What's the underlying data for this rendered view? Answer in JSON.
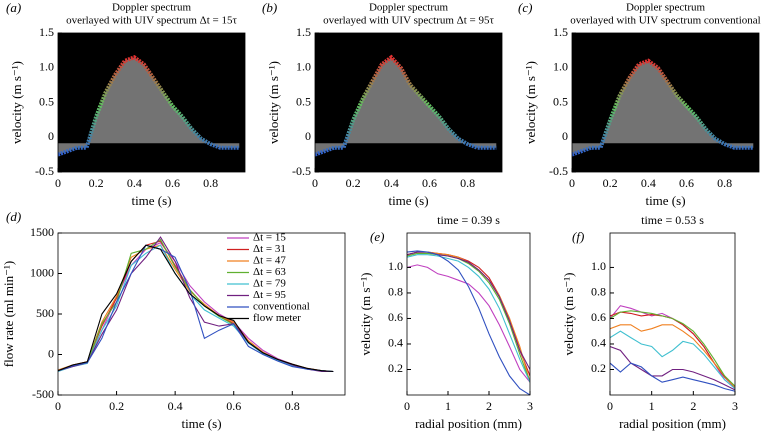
{
  "chart_data": [
    {
      "type": "spectrogram",
      "panel": "(a)",
      "title": "Doppler spectrum",
      "subtitle": "overlayed with UIV spectrum Δt = 15τ",
      "xlabel": "time (s)",
      "ylabel": "velocity (m s⁻¹)",
      "x": [
        0,
        0.05,
        0.1,
        0.15,
        0.2,
        0.25,
        0.3,
        0.35,
        0.4,
        0.45,
        0.5,
        0.55,
        0.6,
        0.65,
        0.7,
        0.75,
        0.8,
        0.85,
        0.9,
        0.95
      ],
      "values": [
        -0.25,
        -0.2,
        -0.15,
        -0.15,
        0.3,
        0.65,
        0.9,
        1.1,
        1.15,
        1.05,
        0.85,
        0.65,
        0.45,
        0.3,
        0.12,
        -0.02,
        -0.1,
        -0.15,
        -0.15,
        -0.15
      ],
      "xlim": [
        0,
        0.98
      ],
      "ylim": [
        -0.5,
        1.5
      ],
      "xticks": [
        0,
        0.2,
        0.4,
        0.6,
        0.8
      ],
      "yticks": [
        -0.5,
        0,
        0.5,
        {
          "value": 1,
          "label": "1.0"
        },
        1.5
      ]
    },
    {
      "type": "spectrogram",
      "panel": "(b)",
      "title": "Doppler spectrum",
      "subtitle": "overlayed with UIV spectrum Δt = 95τ",
      "xlabel": "time (s)",
      "ylabel": "velocity (m s⁻¹)",
      "x": [
        0,
        0.05,
        0.1,
        0.15,
        0.2,
        0.25,
        0.3,
        0.35,
        0.4,
        0.45,
        0.5,
        0.55,
        0.6,
        0.65,
        0.7,
        0.75,
        0.8,
        0.85,
        0.9,
        0.95
      ],
      "values": [
        -0.25,
        -0.2,
        -0.15,
        -0.15,
        0.25,
        0.55,
        0.8,
        1.05,
        1.15,
        1.0,
        0.75,
        0.6,
        0.45,
        0.3,
        0.12,
        -0.02,
        -0.1,
        -0.15,
        -0.15,
        -0.15
      ],
      "xlim": [
        0,
        0.98
      ],
      "ylim": [
        -0.5,
        1.5
      ],
      "xticks": [
        0,
        0.2,
        0.4,
        0.6,
        0.8
      ],
      "yticks": [
        -0.5,
        0,
        0.5,
        {
          "value": 1,
          "label": "1.0"
        },
        1.5
      ]
    },
    {
      "type": "spectrogram",
      "panel": "(c)",
      "title": "Doppler spectrum",
      "subtitle": "overlayed with UIV spectrum conventional",
      "xlabel": "time (s)",
      "ylabel": "velocity (m s⁻¹)",
      "x": [
        0,
        0.05,
        0.1,
        0.15,
        0.2,
        0.25,
        0.3,
        0.35,
        0.4,
        0.45,
        0.5,
        0.55,
        0.6,
        0.65,
        0.7,
        0.75,
        0.8,
        0.85,
        0.9,
        0.95
      ],
      "values": [
        -0.25,
        -0.2,
        -0.15,
        -0.15,
        0.25,
        0.6,
        0.85,
        1.05,
        1.1,
        1.0,
        0.8,
        0.6,
        0.45,
        0.3,
        0.12,
        -0.02,
        -0.1,
        -0.15,
        -0.15,
        -0.15
      ],
      "xlim": [
        0,
        0.98
      ],
      "ylim": [
        -0.5,
        1.5
      ],
      "xticks": [
        0,
        0.2,
        0.4,
        0.6,
        0.8
      ],
      "yticks": [
        -0.5,
        0,
        0.5,
        {
          "value": 1,
          "label": "1.0"
        },
        1.5
      ]
    },
    {
      "type": "line",
      "panel": "(d)",
      "xlabel": "time (s)",
      "ylabel": "flow rate (ml min⁻¹)",
      "legend": "upper right",
      "x": [
        0,
        0.05,
        0.1,
        0.15,
        0.2,
        0.25,
        0.3,
        0.35,
        0.4,
        0.45,
        0.5,
        0.55,
        0.6,
        0.65,
        0.7,
        0.75,
        0.8,
        0.85,
        0.9,
        0.94
      ],
      "xlim": [
        0,
        0.98
      ],
      "ylim": [
        -500,
        1500
      ],
      "xticks": [
        0,
        0.2,
        0.4,
        0.6,
        0.8
      ],
      "yticks": [
        -500,
        0,
        500,
        1000,
        1500
      ],
      "series": [
        {
          "name": "Δt = 15",
          "color": "#c040c0",
          "values": [
            -200,
            -140,
            -100,
            300,
            700,
            1100,
            1300,
            1380,
            1150,
            850,
            650,
            500,
            400,
            200,
            50,
            -50,
            -120,
            -180,
            -200,
            -210
          ]
        },
        {
          "name": "Δt = 31",
          "color": "#d02020",
          "values": [
            -200,
            -130,
            -90,
            350,
            700,
            1150,
            1350,
            1400,
            1100,
            800,
            600,
            480,
            380,
            150,
            20,
            -60,
            -130,
            -170,
            -200,
            -210
          ]
        },
        {
          "name": "Δt = 47",
          "color": "#f08020",
          "values": [
            -190,
            -130,
            -90,
            400,
            720,
            1200,
            1300,
            1350,
            1050,
            780,
            620,
            480,
            400,
            170,
            30,
            -60,
            -120,
            -170,
            -200,
            -210
          ]
        },
        {
          "name": "Δt = 63",
          "color": "#60b030",
          "values": [
            -200,
            -140,
            -100,
            380,
            650,
            1250,
            1300,
            1420,
            1080,
            800,
            600,
            470,
            370,
            150,
            20,
            -60,
            -130,
            -180,
            -200,
            -210
          ]
        },
        {
          "name": "Δt = 79",
          "color": "#40c0d0",
          "values": [
            -210,
            -150,
            -110,
            300,
            600,
            1100,
            1250,
            1350,
            1000,
            750,
            550,
            450,
            350,
            140,
            10,
            -70,
            -140,
            -180,
            -200,
            -210
          ]
        },
        {
          "name": "Δt = 95",
          "color": "#702080",
          "values": [
            -200,
            -150,
            -100,
            250,
            550,
            1000,
            1200,
            1450,
            1150,
            700,
            400,
            350,
            380,
            150,
            20,
            -60,
            -130,
            -180,
            -210,
            -210
          ]
        },
        {
          "name": "conventional",
          "color": "#3050c0",
          "values": [
            -200,
            -140,
            -100,
            200,
            650,
            1000,
            1350,
            1300,
            1200,
            800,
            200,
            300,
            380,
            100,
            0,
            -80,
            -150,
            -180,
            -200,
            -210
          ]
        },
        {
          "name": "flow meter",
          "color": "#000000",
          "values": [
            -200,
            -130,
            -90,
            500,
            750,
            1150,
            1350,
            1300,
            1000,
            750,
            600,
            480,
            420,
            150,
            20,
            -60,
            -120,
            -170,
            -200,
            -210
          ]
        }
      ]
    },
    {
      "type": "line",
      "panel": "(e)",
      "title": "time = 0.39 s",
      "xlabel": "radial position (mm)",
      "ylabel": "velocity (m s⁻¹)",
      "x": [
        0,
        0.25,
        0.5,
        0.75,
        1,
        1.25,
        1.5,
        1.75,
        2,
        2.25,
        2.5,
        2.75,
        3
      ],
      "xlim": [
        0,
        3
      ],
      "ylim": [
        0,
        1.27
      ],
      "xticks": [
        0,
        1,
        2,
        3
      ],
      "yticks": [
        0.2,
        0.4,
        0.6,
        0.8,
        {
          "value": 1,
          "label": "1.0"
        }
      ],
      "series": [
        {
          "color": "#c040c0",
          "values": [
            1.0,
            1.02,
            1.0,
            0.95,
            0.93,
            0.9,
            0.87,
            0.8,
            0.7,
            0.55,
            0.38,
            0.2,
            0.1
          ]
        },
        {
          "color": "#d02020",
          "values": [
            1.1,
            1.12,
            1.12,
            1.11,
            1.1,
            1.08,
            1.05,
            1.0,
            0.92,
            0.78,
            0.6,
            0.35,
            0.15
          ]
        },
        {
          "color": "#f08020",
          "values": [
            1.1,
            1.12,
            1.12,
            1.11,
            1.1,
            1.08,
            1.04,
            0.98,
            0.9,
            0.78,
            0.6,
            0.38,
            0.1
          ]
        },
        {
          "color": "#60b030",
          "values": [
            1.09,
            1.11,
            1.11,
            1.1,
            1.09,
            1.07,
            1.03,
            0.97,
            0.88,
            0.75,
            0.56,
            0.32,
            0.1
          ]
        },
        {
          "color": "#40c0d0",
          "values": [
            1.08,
            1.1,
            1.1,
            1.09,
            1.07,
            1.05,
            1.0,
            0.93,
            0.83,
            0.68,
            0.48,
            0.28,
            0.1
          ]
        },
        {
          "color": "#702080",
          "values": [
            1.1,
            1.12,
            1.12,
            1.1,
            1.09,
            1.07,
            1.04,
            0.98,
            0.9,
            0.77,
            0.58,
            0.35,
            0.2
          ]
        },
        {
          "color": "#3050c0",
          "values": [
            1.12,
            1.13,
            1.12,
            1.1,
            1.05,
            0.98,
            0.85,
            0.68,
            0.48,
            0.3,
            0.15,
            0.05,
            0
          ]
        }
      ]
    },
    {
      "type": "line",
      "panel": "(f)",
      "title": "time = 0.53 s",
      "xlabel": "radial position (mm)",
      "ylabel": "velocity (m s⁻¹)",
      "x": [
        0,
        0.25,
        0.5,
        0.75,
        1,
        1.25,
        1.5,
        1.75,
        2,
        2.25,
        2.5,
        2.75,
        3
      ],
      "xlim": [
        0,
        3
      ],
      "ylim": [
        0,
        1.27
      ],
      "xticks": [
        0,
        1,
        2,
        3
      ],
      "yticks": [
        0.2,
        0.4,
        0.6,
        0.8,
        {
          "value": 1,
          "label": "1.0"
        }
      ],
      "series": [
        {
          "color": "#c040c0",
          "values": [
            0.6,
            0.7,
            0.68,
            0.65,
            0.62,
            0.64,
            0.6,
            0.55,
            0.48,
            0.38,
            0.25,
            0.12,
            0.05
          ]
        },
        {
          "color": "#d02020",
          "values": [
            0.62,
            0.65,
            0.64,
            0.62,
            0.63,
            0.62,
            0.6,
            0.55,
            0.48,
            0.38,
            0.25,
            0.14,
            0.06
          ]
        },
        {
          "color": "#f08020",
          "values": [
            0.52,
            0.55,
            0.55,
            0.5,
            0.52,
            0.55,
            0.55,
            0.5,
            0.44,
            0.35,
            0.25,
            0.15,
            0.06
          ]
        },
        {
          "color": "#60b030",
          "values": [
            0.6,
            0.65,
            0.66,
            0.65,
            0.64,
            0.62,
            0.6,
            0.56,
            0.5,
            0.4,
            0.28,
            0.15,
            0.07
          ]
        },
        {
          "color": "#40c0d0",
          "values": [
            0.45,
            0.5,
            0.45,
            0.4,
            0.38,
            0.3,
            0.35,
            0.42,
            0.4,
            0.32,
            0.22,
            0.12,
            0.05
          ]
        },
        {
          "color": "#702080",
          "values": [
            0.38,
            0.35,
            0.25,
            0.2,
            0.15,
            0.15,
            0.2,
            0.2,
            0.18,
            0.15,
            0.12,
            0.08,
            0.04
          ]
        },
        {
          "color": "#3050c0",
          "values": [
            0.25,
            0.18,
            0.25,
            0.22,
            0.15,
            0.1,
            0.12,
            0.14,
            0.12,
            0.1,
            0.08,
            0.05,
            0.03
          ]
        }
      ]
    }
  ]
}
